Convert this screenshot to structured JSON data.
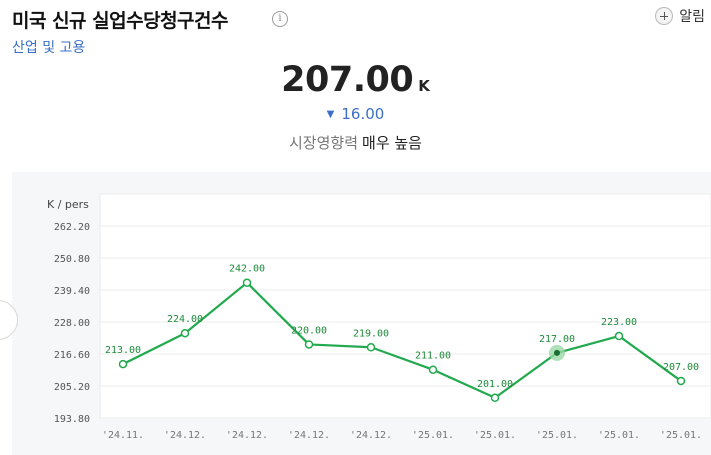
{
  "header": {
    "title": "미국 신규 실업수당청구건수",
    "info_icon": "info-icon",
    "category": "산업 및 고용",
    "alert_label": "알림",
    "alert_icon": "plus-circle-icon"
  },
  "summary": {
    "value": "207.00",
    "unit": "K",
    "change_arrow": "▼",
    "change": "16.00",
    "impact_label": "시장영향력",
    "impact_value": "매우 높음"
  },
  "colors": {
    "line": "#22a94e",
    "label": "#1e8a3a",
    "change_down": "#3b6fc7",
    "highlight": "#9bd8a6"
  },
  "chart_data": {
    "type": "line",
    "ylabel": "K / pers",
    "ylim": [
      193.8,
      273.6
    ],
    "y_ticks": [
      "262.20",
      "250.80",
      "239.40",
      "228.00",
      "216.60",
      "205.20",
      "193.80"
    ],
    "categories": [
      "'24.11.",
      "'24.12.",
      "'24.12.",
      "'24.12.",
      "'24.12.",
      "'25.01.",
      "'25.01.",
      "'25.01.",
      "'25.01.",
      "'25.01."
    ],
    "values": [
      213.0,
      224.0,
      242.0,
      220.0,
      219.0,
      211.0,
      201.0,
      217.0,
      223.0,
      207.0
    ],
    "data_labels": [
      "213.00",
      "224.00",
      "242.00",
      "220.00",
      "219.00",
      "211.00",
      "201.00",
      "217.00",
      "223.00",
      "207.00"
    ],
    "highlighted_index": 7,
    "grid": true
  }
}
